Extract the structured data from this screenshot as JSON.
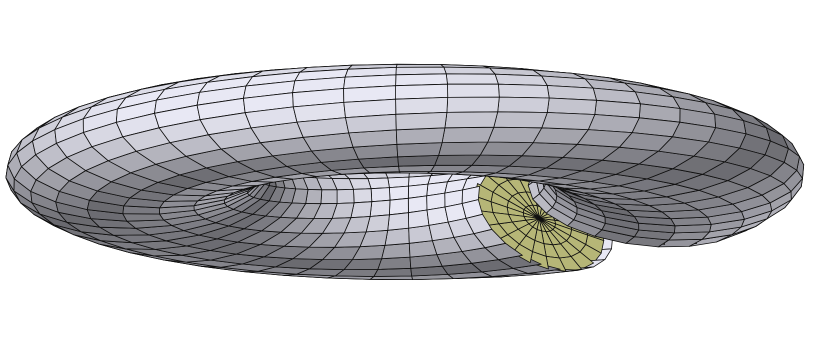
{
  "figure": {
    "kind": "3d-surface-mesh",
    "subject": "torus",
    "has_cutaway_section": true,
    "shading": "lambert",
    "colors": {
      "background": "#ffffff",
      "surface_base": "#e8e8f4",
      "cut_face_base": "#f4f4a0",
      "edge": "#101010"
    },
    "mesh": {
      "major_segments": 48,
      "minor_segments": 22,
      "twist_turns": 1
    },
    "geometry": {
      "major_radius": 1.0,
      "minor_radius": 0.48
    }
  }
}
